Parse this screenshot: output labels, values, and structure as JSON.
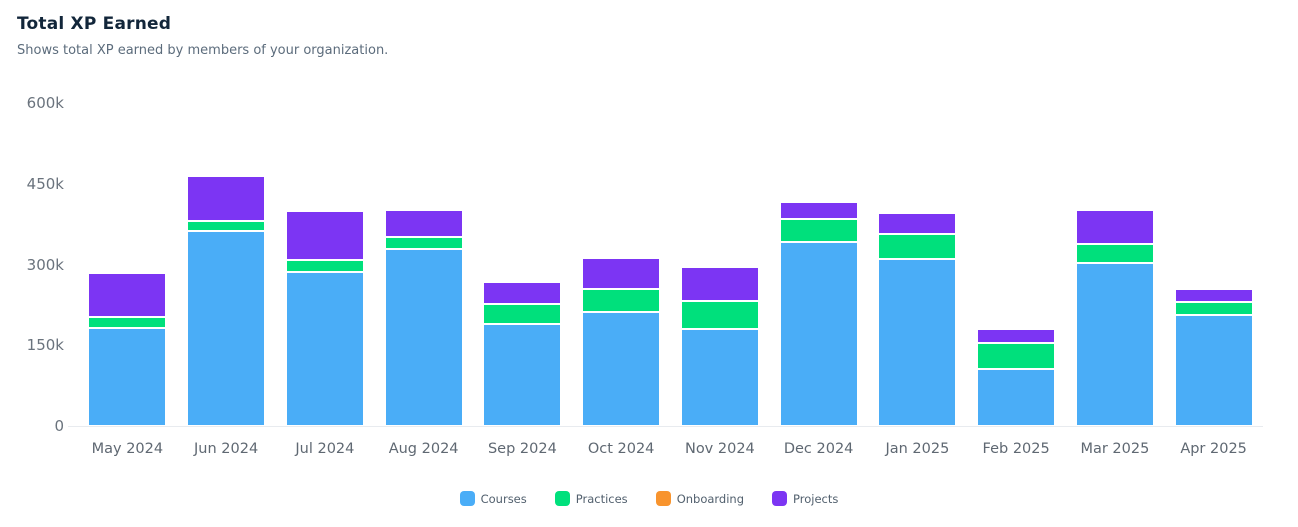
{
  "header": {
    "title": "Total XP Earned",
    "subtitle": "Shows total XP earned by members of your organization."
  },
  "chart_data": {
    "type": "bar",
    "stacked": true,
    "title": "Total XP Earned",
    "xlabel": "",
    "ylabel": "",
    "ylim": [
      0,
      600000
    ],
    "grid": false,
    "legend_position": "bottom",
    "yticks": [
      "600k",
      "450k",
      "300k",
      "150k",
      "0"
    ],
    "ytick_values": [
      600000,
      450000,
      300000,
      150000,
      0
    ],
    "categories": [
      "May 2024",
      "Jun 2024",
      "Jul 2024",
      "Aug 2024",
      "Sep 2024",
      "Oct 2024",
      "Nov 2024",
      "Dec 2024",
      "Jan 2025",
      "Feb 2025",
      "Mar 2025",
      "Apr 2025"
    ],
    "series": [
      {
        "name": "Courses",
        "color": "#4aadf7",
        "values": [
          182000,
          363000,
          287000,
          329000,
          190000,
          212000,
          180000,
          342000,
          311000,
          105000,
          303000,
          207000
        ]
      },
      {
        "name": "Practices",
        "color": "#00e07c",
        "values": [
          20000,
          17000,
          22000,
          23000,
          37000,
          42000,
          53000,
          42000,
          46000,
          50000,
          35000,
          23000
        ]
      },
      {
        "name": "Onboarding",
        "color": "#f8942e",
        "values": [
          0,
          0,
          0,
          0,
          0,
          0,
          0,
          0,
          0,
          0,
          0,
          0
        ]
      },
      {
        "name": "Projects",
        "color": "#7c35f3",
        "values": [
          83000,
          85000,
          91000,
          50000,
          41000,
          58000,
          62000,
          32000,
          38000,
          26000,
          63000,
          25000
        ]
      }
    ],
    "totals": [
      285000,
      465000,
      400000,
      402000,
      268000,
      312000,
      295000,
      416000,
      395000,
      181000,
      401000,
      255000
    ]
  }
}
